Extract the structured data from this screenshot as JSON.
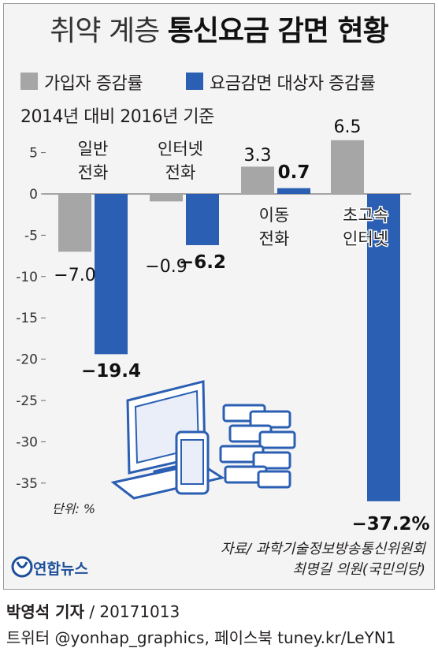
{
  "title": {
    "light": "취약 계층",
    "bold": "통신요금 감면 현황"
  },
  "legend": [
    {
      "name": "가입자 증감률",
      "color": "#a6a6a6"
    },
    {
      "name": "요금감면 대상자 증감률",
      "color": "#2b5fb3"
    }
  ],
  "basis": "2014년 대비 2016년 기준",
  "unit": "단위: %",
  "source_line1": "자료/ 과학기술정보방송통신위원회",
  "source_line2": "최명길 의원(국민의당)",
  "logo_text": "연합뉴스",
  "credit": {
    "name": "박영석 기자",
    "date": " / 20171013"
  },
  "social": "트위터 @yonhap_graphics, 페이스북 tuney.kr/LeYN1",
  "chart_data": {
    "type": "bar",
    "categories": [
      [
        "일반",
        "전화"
      ],
      [
        "인터넷",
        "전화"
      ],
      [
        "이동",
        "전화"
      ],
      [
        "초고속",
        "인터넷"
      ]
    ],
    "series": [
      {
        "name": "가입자 증감률",
        "color": "#a6a6a6",
        "values": [
          -7.0,
          -0.9,
          3.3,
          6.5
        ],
        "labels": [
          "−7.0",
          "−0.9",
          "3.3",
          "6.5"
        ]
      },
      {
        "name": "요금감면 대상자 증감률",
        "color": "#2b5fb3",
        "values": [
          -19.4,
          -6.2,
          0.7,
          -37.2
        ],
        "labels": [
          "−19.4",
          "−6.2",
          "0.7",
          "−37.2%"
        ]
      }
    ],
    "yticks": [
      "5",
      "0",
      "-5",
      "-10",
      "-15",
      "-20",
      "-25",
      "-30",
      "-35"
    ],
    "ylim": [
      -37.2,
      6.5
    ],
    "grid": false
  }
}
